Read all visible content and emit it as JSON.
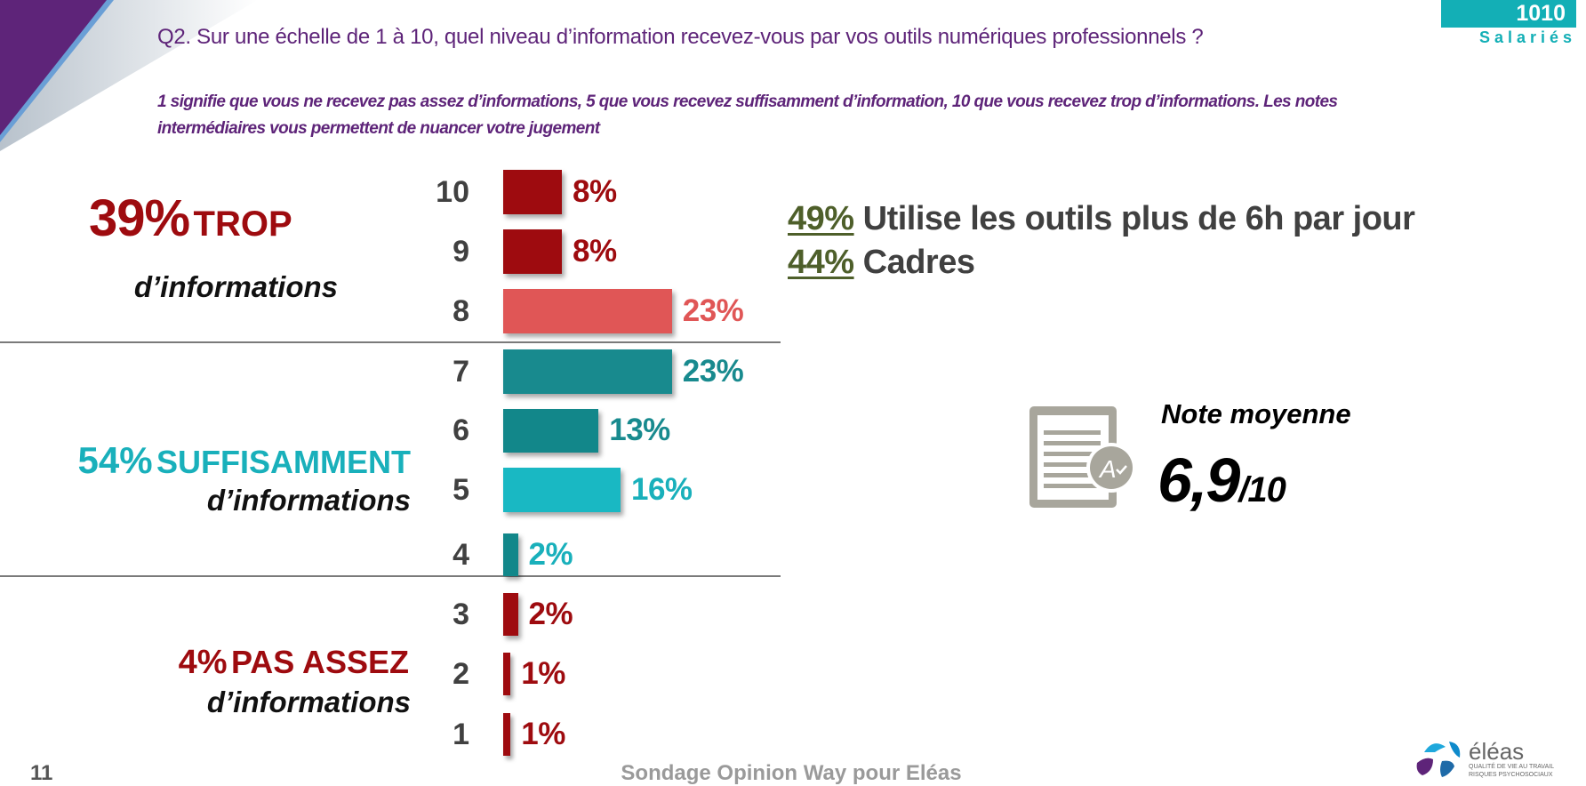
{
  "header": {
    "question": "Q2. Sur une échelle  de 1 à 10, quel niveau d’information recevez-vous par vos outils numériques professionnels ?",
    "subtitle": "1 signifie que vous ne recevez pas assez d’informations, 5 que vous recevez suffisamment d’information, 10 que vous recevez trop d’informations. Les notes intermédiaires vous permettent de nuancer votre jugement",
    "badge_value": "1010",
    "badge_label": "Salariés"
  },
  "groups": {
    "trop": {
      "pct": "39%",
      "label": "TROP",
      "sub": "d’informations",
      "color": "#9e0b0f"
    },
    "suffisamment": {
      "pct": "54%",
      "label": "SUFFISAMMENT",
      "sub": "d’informations",
      "color": "#19b0bb"
    },
    "pas_assez": {
      "pct": "4%",
      "label": "PAS ASSEZ",
      "sub": "d’informations",
      "color": "#9e0b0f"
    }
  },
  "chart_data": {
    "type": "bar",
    "orientation": "horizontal",
    "categories": [
      "10",
      "9",
      "8",
      "7",
      "6",
      "5",
      "4",
      "3",
      "2",
      "1"
    ],
    "values": [
      8,
      8,
      23,
      23,
      13,
      16,
      2,
      2,
      1,
      1
    ],
    "value_labels": [
      "8%",
      "8%",
      "23%",
      "23%",
      "13%",
      "16%",
      "2%",
      "2%",
      "1%",
      "1%"
    ],
    "bar_colors": [
      "#9e0b0f",
      "#9e0b0f",
      "#e05656",
      "#188a8e",
      "#12878a",
      "#19b8c3",
      "#12878a",
      "#9e0b0f",
      "#9e0b0f",
      "#9e0b0f"
    ],
    "label_colors": [
      "#9e0b0f",
      "#9e0b0f",
      "#e05656",
      "#188a8e",
      "#188a8e",
      "#19b0bb",
      "#19b0bb",
      "#9e0b0f",
      "#9e0b0f",
      "#9e0b0f"
    ],
    "unit": "%"
  },
  "stats": [
    {
      "pct": "49%",
      "text": "Utilise les outils plus de 6h par jour"
    },
    {
      "pct": "44%",
      "text": "Cadres"
    }
  ],
  "note": {
    "label": "Note moyenne",
    "value": "6,9",
    "denominator": "/10",
    "icon": "graded-document-icon"
  },
  "footer": {
    "page": "11",
    "source": "Sondage Opinion Way pour Eléas"
  },
  "logo": {
    "name": "éléas",
    "tagline1": "qualité de vie au travail",
    "tagline2": "risques psychosociaux"
  }
}
